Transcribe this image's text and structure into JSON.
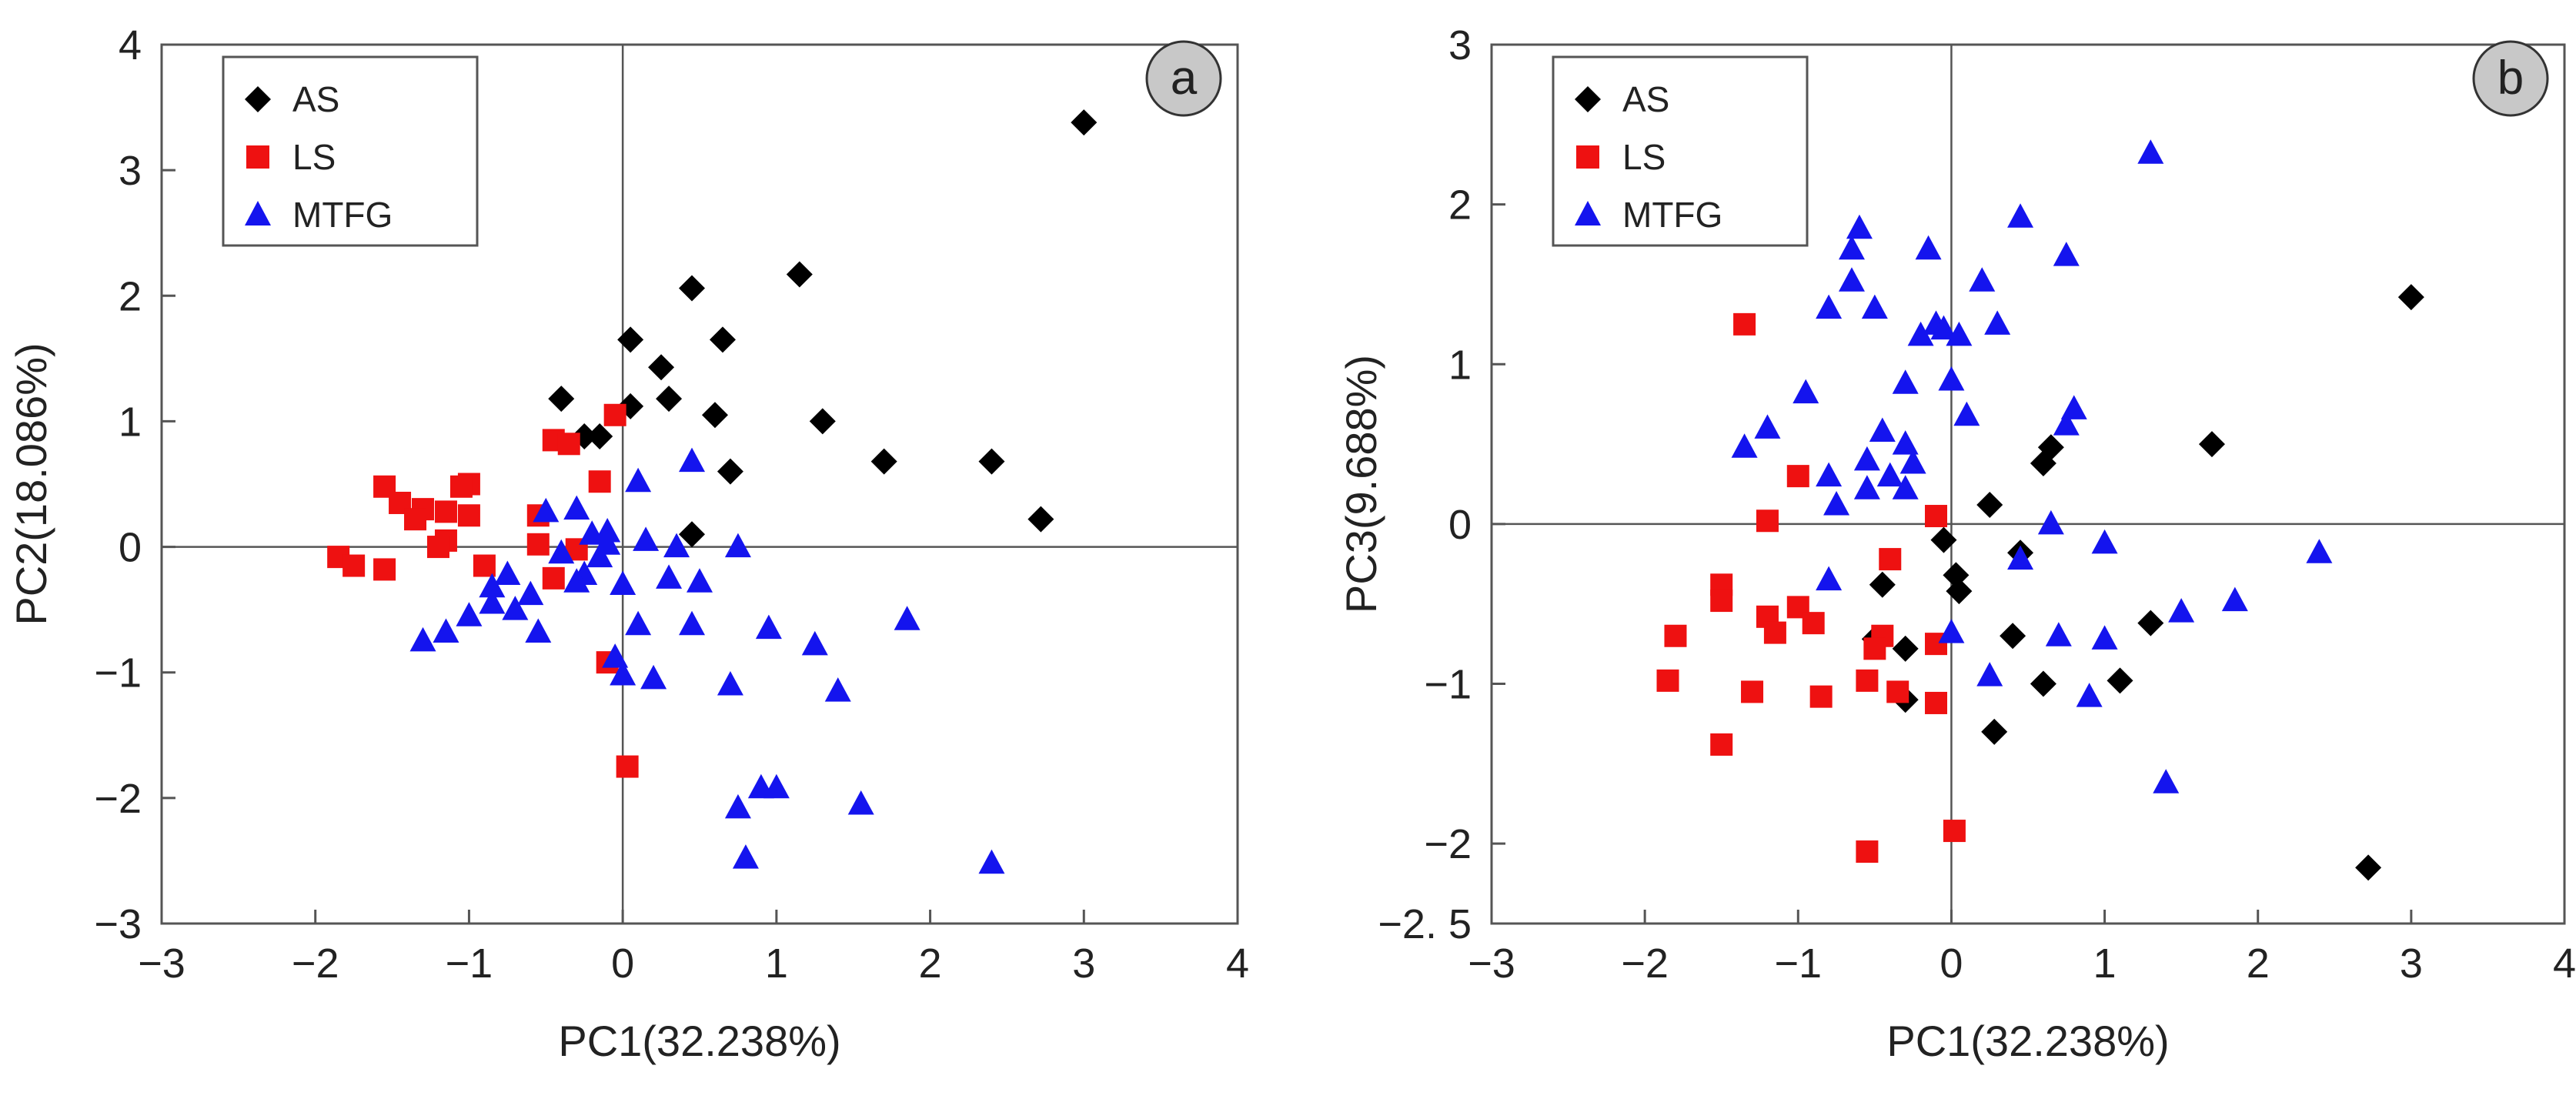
{
  "colors": {
    "AS": "#000000",
    "LS": "#ee1111",
    "MTFG": "#1414ee",
    "axis": "#555555",
    "badge_fill": "#c8c8c8"
  },
  "chart_data": [
    {
      "type": "scatter",
      "panel_label": "a",
      "xlabel": "PC1(32.238%)",
      "ylabel": "PC2(18.086%)",
      "xlim": [
        -3,
        4
      ],
      "ylim": [
        -3,
        4
      ],
      "x_ticks": [
        -3,
        -2,
        -1,
        0,
        1,
        2,
        3,
        4
      ],
      "y_ticks": [
        -3,
        -2,
        -1,
        0,
        1,
        2,
        3,
        4
      ],
      "x_tick_labels": [
        "−3",
        "−2",
        "−1",
        "0",
        "1",
        "2",
        "3",
        "4"
      ],
      "y_tick_labels": [
        "−3",
        "−2",
        "−1",
        "0",
        "1",
        "2",
        "3",
        "4"
      ],
      "legend": [
        "AS",
        "LS",
        "MTFG"
      ],
      "legend_position": "top-left",
      "grid": false,
      "series": [
        {
          "name": "AS",
          "marker": "diamond",
          "points": [
            [
              3.0,
              3.38
            ],
            [
              1.15,
              2.17
            ],
            [
              0.45,
              2.06
            ],
            [
              0.05,
              1.65
            ],
            [
              0.65,
              1.65
            ],
            [
              0.25,
              1.43
            ],
            [
              -0.4,
              1.18
            ],
            [
              0.3,
              1.18
            ],
            [
              0.05,
              1.12
            ],
            [
              -0.25,
              0.88
            ],
            [
              -0.15,
              0.88
            ],
            [
              0.6,
              1.05
            ],
            [
              1.3,
              1.0
            ],
            [
              1.7,
              0.68
            ],
            [
              2.4,
              0.68
            ],
            [
              0.7,
              0.6
            ],
            [
              2.72,
              0.22
            ],
            [
              0.45,
              0.1
            ]
          ]
        },
        {
          "name": "LS",
          "marker": "square",
          "points": [
            [
              -0.05,
              1.05
            ],
            [
              -0.45,
              0.85
            ],
            [
              -0.35,
              0.82
            ],
            [
              -0.15,
              0.52
            ],
            [
              -1.0,
              0.5
            ],
            [
              -1.05,
              0.48
            ],
            [
              -1.55,
              0.48
            ],
            [
              -1.45,
              0.35
            ],
            [
              -1.3,
              0.3
            ],
            [
              -1.15,
              0.28
            ],
            [
              -1.35,
              0.22
            ],
            [
              -1.0,
              0.25
            ],
            [
              -1.15,
              0.05
            ],
            [
              -0.55,
              0.25
            ],
            [
              -0.55,
              0.02
            ],
            [
              -0.3,
              -0.02
            ],
            [
              -1.2,
              0.0
            ],
            [
              -1.85,
              -0.08
            ],
            [
              -1.75,
              -0.15
            ],
            [
              -1.55,
              -0.18
            ],
            [
              -0.9,
              -0.15
            ],
            [
              -0.45,
              -0.25
            ],
            [
              -0.1,
              -0.92
            ],
            [
              0.03,
              -1.75
            ]
          ]
        },
        {
          "name": "MTFG",
          "marker": "triangle",
          "points": [
            [
              0.45,
              0.68
            ],
            [
              0.1,
              0.52
            ],
            [
              -0.5,
              0.28
            ],
            [
              -0.3,
              0.3
            ],
            [
              -0.2,
              0.1
            ],
            [
              -0.1,
              0.12
            ],
            [
              -0.1,
              0.02
            ],
            [
              0.15,
              0.05
            ],
            [
              0.35,
              0.0
            ],
            [
              0.75,
              0.0
            ],
            [
              -0.4,
              -0.05
            ],
            [
              -0.15,
              -0.08
            ],
            [
              -0.25,
              -0.22
            ],
            [
              -0.3,
              -0.28
            ],
            [
              -0.75,
              -0.22
            ],
            [
              -0.85,
              -0.32
            ],
            [
              0.0,
              -0.3
            ],
            [
              0.3,
              -0.25
            ],
            [
              0.5,
              -0.28
            ],
            [
              -0.6,
              -0.38
            ],
            [
              -0.7,
              -0.5
            ],
            [
              -0.85,
              -0.45
            ],
            [
              -1.0,
              -0.55
            ],
            [
              -1.15,
              -0.68
            ],
            [
              -1.3,
              -0.75
            ],
            [
              -0.55,
              -0.68
            ],
            [
              0.1,
              -0.62
            ],
            [
              0.45,
              -0.62
            ],
            [
              0.95,
              -0.65
            ],
            [
              1.25,
              -0.78
            ],
            [
              1.85,
              -0.58
            ],
            [
              -0.05,
              -0.88
            ],
            [
              0.0,
              -1.02
            ],
            [
              0.2,
              -1.05
            ],
            [
              0.7,
              -1.1
            ],
            [
              1.4,
              -1.15
            ],
            [
              0.9,
              -1.92
            ],
            [
              1.0,
              -1.92
            ],
            [
              0.75,
              -2.08
            ],
            [
              1.55,
              -2.05
            ],
            [
              0.8,
              -2.48
            ],
            [
              2.4,
              -2.52
            ]
          ]
        }
      ]
    },
    {
      "type": "scatter",
      "panel_label": "b",
      "xlabel": "PC1(32.238%)",
      "ylabel": "PC3(9.688%)",
      "xlim": [
        -3,
        4
      ],
      "ylim": [
        -2.5,
        3
      ],
      "x_ticks": [
        -3,
        -2,
        -1,
        0,
        1,
        2,
        3,
        4
      ],
      "y_ticks": [
        -2.5,
        -2,
        -1,
        0,
        1,
        2,
        3
      ],
      "x_tick_labels": [
        "−3",
        "−2",
        "−1",
        "0",
        "1",
        "2",
        "3",
        "4"
      ],
      "y_tick_labels": [
        "−2. 5",
        "−2",
        "−1",
        "0",
        "1",
        "2",
        "3"
      ],
      "legend": [
        "AS",
        "LS",
        "MTFG"
      ],
      "legend_position": "top-left",
      "grid": false,
      "series": [
        {
          "name": "AS",
          "marker": "diamond",
          "points": [
            [
              3.0,
              1.42
            ],
            [
              1.7,
              0.5
            ],
            [
              0.65,
              0.48
            ],
            [
              0.6,
              0.38
            ],
            [
              0.25,
              0.12
            ],
            [
              -0.05,
              -0.1
            ],
            [
              0.03,
              -0.32
            ],
            [
              0.05,
              -0.42
            ],
            [
              -0.45,
              -0.38
            ],
            [
              0.45,
              -0.18
            ],
            [
              -0.5,
              -0.72
            ],
            [
              -0.3,
              -0.78
            ],
            [
              0.4,
              -0.7
            ],
            [
              1.3,
              -0.62
            ],
            [
              0.6,
              -1.0
            ],
            [
              1.1,
              -0.98
            ],
            [
              -0.3,
              -1.1
            ],
            [
              0.28,
              -1.3
            ],
            [
              2.72,
              -2.15
            ]
          ]
        },
        {
          "name": "LS",
          "marker": "square",
          "points": [
            [
              -1.35,
              1.25
            ],
            [
              -1.0,
              0.3
            ],
            [
              -1.2,
              0.02
            ],
            [
              -0.1,
              0.05
            ],
            [
              -0.4,
              -0.22
            ],
            [
              -1.5,
              -0.38
            ],
            [
              -1.5,
              -0.48
            ],
            [
              -1.8,
              -0.7
            ],
            [
              -1.2,
              -0.58
            ],
            [
              -1.15,
              -0.68
            ],
            [
              -1.0,
              -0.52
            ],
            [
              -0.9,
              -0.62
            ],
            [
              -0.45,
              -0.7
            ],
            [
              -0.5,
              -0.78
            ],
            [
              -0.1,
              -0.75
            ],
            [
              -1.85,
              -0.98
            ],
            [
              -1.3,
              -1.05
            ],
            [
              -0.85,
              -1.08
            ],
            [
              -0.55,
              -0.98
            ],
            [
              -0.35,
              -1.05
            ],
            [
              -0.1,
              -1.12
            ],
            [
              -1.5,
              -1.38
            ],
            [
              0.02,
              -1.92
            ],
            [
              -0.55,
              -2.05
            ]
          ]
        },
        {
          "name": "MTFG",
          "marker": "triangle",
          "points": [
            [
              1.3,
              2.32
            ],
            [
              0.45,
              1.92
            ],
            [
              -0.6,
              1.85
            ],
            [
              -0.65,
              1.72
            ],
            [
              -0.15,
              1.72
            ],
            [
              0.75,
              1.68
            ],
            [
              -0.65,
              1.52
            ],
            [
              0.2,
              1.52
            ],
            [
              -0.5,
              1.35
            ],
            [
              -0.8,
              1.35
            ],
            [
              0.3,
              1.25
            ],
            [
              -0.1,
              1.25
            ],
            [
              -0.05,
              1.22
            ],
            [
              0.05,
              1.18
            ],
            [
              -0.2,
              1.18
            ],
            [
              0.0,
              0.9
            ],
            [
              -0.3,
              0.88
            ],
            [
              -0.95,
              0.82
            ],
            [
              0.1,
              0.68
            ],
            [
              -0.45,
              0.58
            ],
            [
              -0.3,
              0.5
            ],
            [
              -1.2,
              0.6
            ],
            [
              -1.35,
              0.48
            ],
            [
              0.8,
              0.72
            ],
            [
              0.75,
              0.62
            ],
            [
              -0.55,
              0.4
            ],
            [
              -0.25,
              0.38
            ],
            [
              -0.55,
              0.22
            ],
            [
              -0.8,
              0.3
            ],
            [
              -0.3,
              0.22
            ],
            [
              -0.4,
              0.3
            ],
            [
              -0.75,
              0.12
            ],
            [
              0.65,
              0.0
            ],
            [
              0.45,
              -0.22
            ],
            [
              1.0,
              -0.12
            ],
            [
              -0.8,
              -0.35
            ],
            [
              0.7,
              -0.7
            ],
            [
              1.0,
              -0.72
            ],
            [
              1.5,
              -0.55
            ],
            [
              1.85,
              -0.48
            ],
            [
              2.4,
              -0.18
            ],
            [
              0.0,
              -0.68
            ],
            [
              0.25,
              -0.95
            ],
            [
              0.9,
              -1.08
            ],
            [
              1.4,
              -1.62
            ]
          ]
        }
      ]
    }
  ]
}
